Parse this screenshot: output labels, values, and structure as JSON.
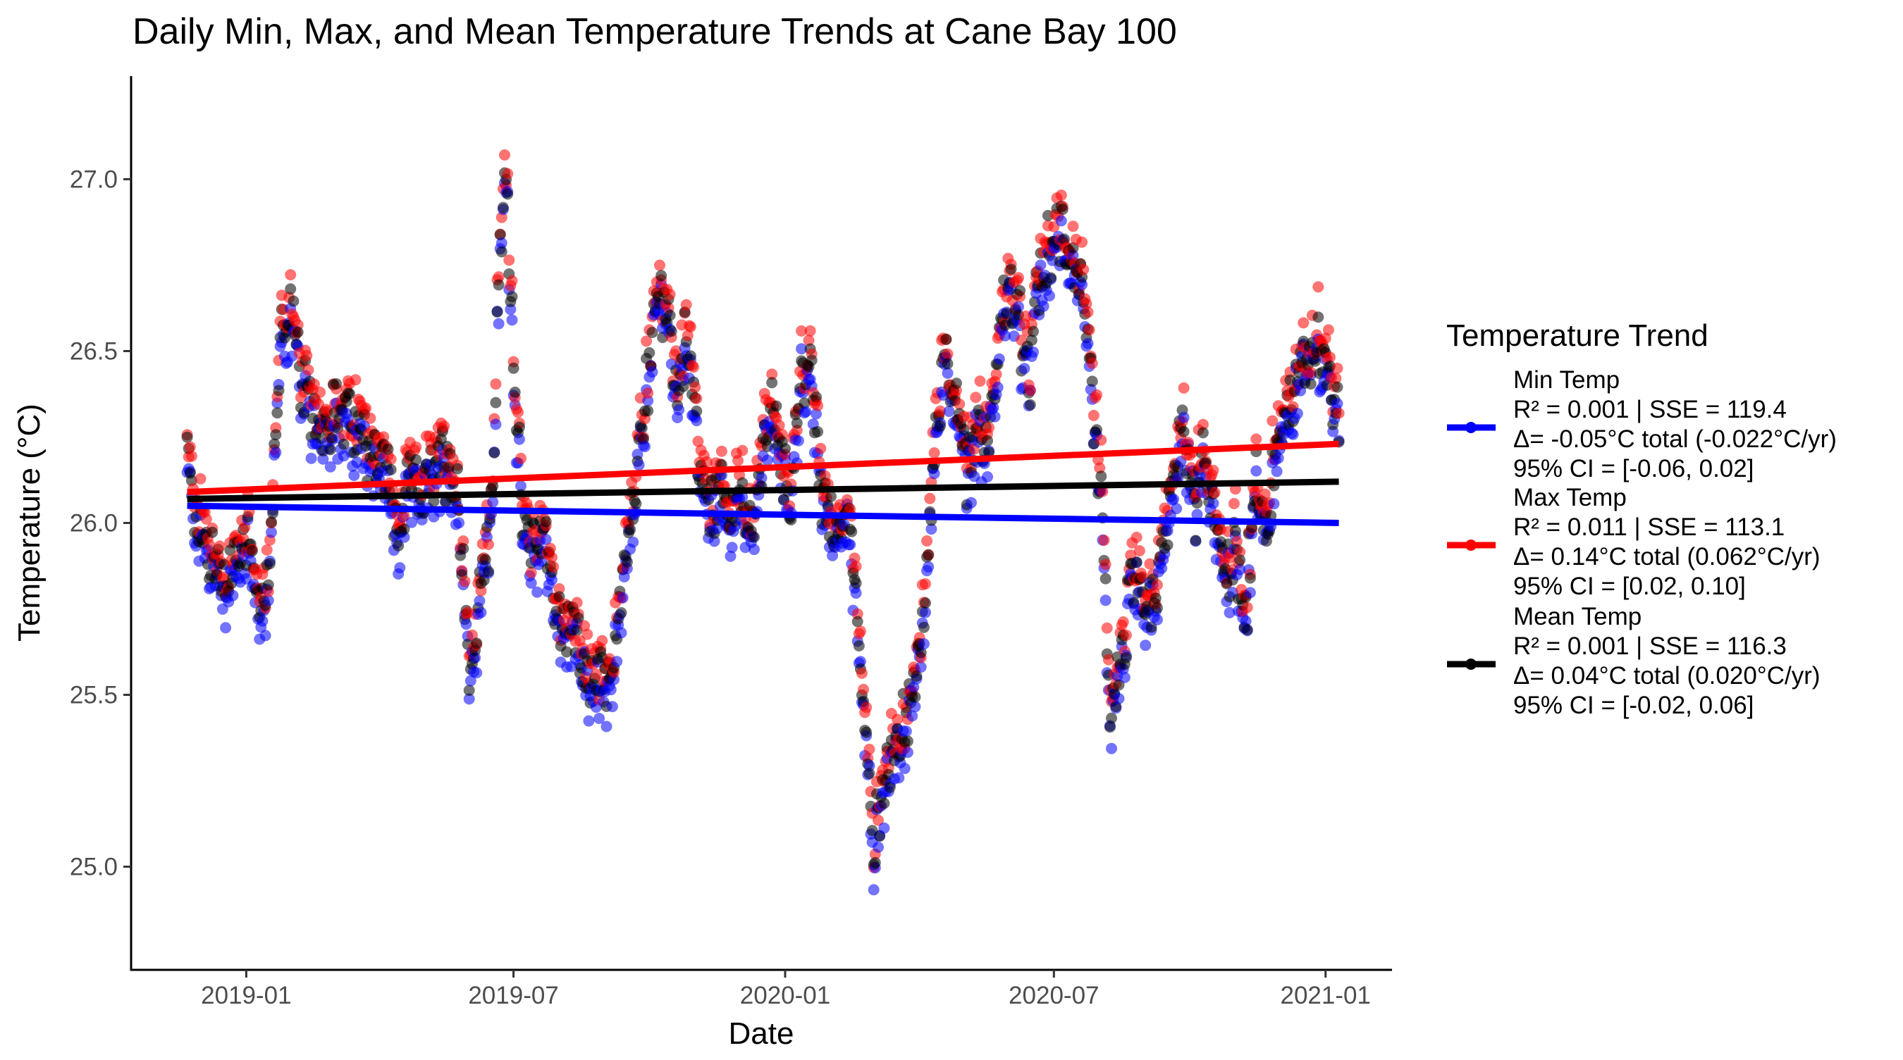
{
  "chart_data": {
    "type": "scatter",
    "title": "Daily Min, Max, and Mean Temperature Trends at Cane Bay 100",
    "xlabel": "Date",
    "ylabel": "Temperature (°C)",
    "xlim": [
      "2018-10-15",
      "2021-02-15"
    ],
    "ylim": [
      24.7,
      27.3
    ],
    "x_ticks": [
      {
        "date": "2019-01-01",
        "label": "2019-01"
      },
      {
        "date": "2019-07-01",
        "label": "2019-07"
      },
      {
        "date": "2020-01-01",
        "label": "2020-01"
      },
      {
        "date": "2020-07-01",
        "label": "2020-07"
      },
      {
        "date": "2021-01-01",
        "label": "2021-01"
      }
    ],
    "y_ticks": [
      25.0,
      25.5,
      26.0,
      26.5,
      27.0
    ],
    "y_tick_labels": [
      "25.0",
      "25.5",
      "26.0",
      "26.5",
      "27.0"
    ],
    "grid": false,
    "legend": {
      "title": "Temperature Trend",
      "placement": "right",
      "entries": [
        {
          "series": "Min Temp",
          "lines": [
            "Min Temp",
            "R² = 0.001 | SSE = 119.4",
            "Δ= -0.05°C total (-0.022°C/yr)",
            "95% CI = [-0.06, 0.02]"
          ]
        },
        {
          "series": "Max Temp",
          "lines": [
            "Max Temp",
            "R² = 0.011 | SSE = 113.1",
            "Δ= 0.14°C total (0.062°C/yr)",
            "95% CI = [0.02, 0.10]"
          ]
        },
        {
          "series": "Mean Temp",
          "lines": [
            "Mean Temp",
            "R² = 0.001 | SSE = 116.3",
            "Δ= 0.04°C total (0.020°C/yr)",
            "95% CI = [-0.02, 0.06]"
          ]
        }
      ]
    },
    "daily_mean_profile": [
      [
        "2018-11-22",
        26.18
      ],
      [
        "2018-11-28",
        26.02
      ],
      [
        "2018-12-05",
        25.95
      ],
      [
        "2018-12-12",
        25.85
      ],
      [
        "2018-12-19",
        25.82
      ],
      [
        "2018-12-26",
        25.9
      ],
      [
        "2019-01-03",
        26.0
      ],
      [
        "2019-01-10",
        25.72
      ],
      [
        "2019-01-17",
        25.85
      ],
      [
        "2019-01-24",
        26.55
      ],
      [
        "2019-01-31",
        26.62
      ],
      [
        "2019-02-07",
        26.4
      ],
      [
        "2019-02-14",
        26.32
      ],
      [
        "2019-02-28",
        26.3
      ],
      [
        "2019-03-14",
        26.28
      ],
      [
        "2019-03-28",
        26.22
      ],
      [
        "2019-04-07",
        26.12
      ],
      [
        "2019-04-14",
        25.95
      ],
      [
        "2019-04-21",
        26.1
      ],
      [
        "2019-05-05",
        26.12
      ],
      [
        "2019-05-19",
        26.2
      ],
      [
        "2019-05-26",
        26.0
      ],
      [
        "2019-06-02",
        25.55
      ],
      [
        "2019-06-09",
        25.85
      ],
      [
        "2019-06-16",
        26.0
      ],
      [
        "2019-06-21",
        26.7
      ],
      [
        "2019-06-26",
        27.05
      ],
      [
        "2019-07-01",
        26.5
      ],
      [
        "2019-07-07",
        26.0
      ],
      [
        "2019-07-14",
        25.9
      ],
      [
        "2019-07-21",
        26.0
      ],
      [
        "2019-07-28",
        25.8
      ],
      [
        "2019-08-04",
        25.65
      ],
      [
        "2019-08-11",
        25.75
      ],
      [
        "2019-08-18",
        25.55
      ],
      [
        "2019-08-25",
        25.55
      ],
      [
        "2019-09-01",
        25.5
      ],
      [
        "2019-09-08",
        25.65
      ],
      [
        "2019-09-15",
        25.9
      ],
      [
        "2019-09-22",
        26.1
      ],
      [
        "2019-09-29",
        26.4
      ],
      [
        "2019-10-06",
        26.7
      ],
      [
        "2019-10-13",
        26.55
      ],
      [
        "2019-10-20",
        26.4
      ],
      [
        "2019-10-27",
        26.55
      ],
      [
        "2019-11-03",
        26.2
      ],
      [
        "2019-11-10",
        26.0
      ],
      [
        "2019-11-17",
        26.1
      ],
      [
        "2019-11-24",
        26.0
      ],
      [
        "2019-12-01",
        26.1
      ],
      [
        "2019-12-08",
        25.95
      ],
      [
        "2019-12-15",
        26.2
      ],
      [
        "2019-12-22",
        26.35
      ],
      [
        "2019-12-29",
        26.15
      ],
      [
        "2020-01-05",
        26.1
      ],
      [
        "2020-01-12",
        26.45
      ],
      [
        "2020-01-19",
        26.4
      ],
      [
        "2020-01-26",
        26.1
      ],
      [
        "2020-02-02",
        25.95
      ],
      [
        "2020-02-09",
        26.05
      ],
      [
        "2020-02-16",
        25.9
      ],
      [
        "2020-02-23",
        25.5
      ],
      [
        "2020-03-01",
        25.05
      ],
      [
        "2020-03-08",
        25.25
      ],
      [
        "2020-03-15",
        25.35
      ],
      [
        "2020-03-22",
        25.4
      ],
      [
        "2020-03-29",
        25.5
      ],
      [
        "2020-04-05",
        25.8
      ],
      [
        "2020-04-12",
        26.3
      ],
      [
        "2020-04-19",
        26.45
      ],
      [
        "2020-04-26",
        26.35
      ],
      [
        "2020-05-03",
        26.15
      ],
      [
        "2020-05-10",
        26.3
      ],
      [
        "2020-05-17",
        26.25
      ],
      [
        "2020-05-24",
        26.45
      ],
      [
        "2020-05-31",
        26.7
      ],
      [
        "2020-06-07",
        26.6
      ],
      [
        "2020-06-14",
        26.4
      ],
      [
        "2020-06-21",
        26.7
      ],
      [
        "2020-06-28",
        26.8
      ],
      [
        "2020-07-05",
        26.85
      ],
      [
        "2020-07-12",
        26.8
      ],
      [
        "2020-07-19",
        26.7
      ],
      [
        "2020-07-26",
        26.4
      ],
      [
        "2020-08-02",
        26.1
      ],
      [
        "2020-08-09",
        25.4
      ],
      [
        "2020-08-16",
        25.6
      ],
      [
        "2020-08-23",
        25.85
      ],
      [
        "2020-08-30",
        25.8
      ],
      [
        "2020-09-06",
        25.75
      ],
      [
        "2020-09-13",
        25.9
      ],
      [
        "2020-09-20",
        26.15
      ],
      [
        "2020-09-27",
        26.25
      ],
      [
        "2020-10-04",
        26.05
      ],
      [
        "2020-10-11",
        26.2
      ],
      [
        "2020-10-18",
        26.0
      ],
      [
        "2020-10-25",
        25.85
      ],
      [
        "2020-11-01",
        25.95
      ],
      [
        "2020-11-08",
        25.75
      ],
      [
        "2020-11-15",
        26.1
      ],
      [
        "2020-11-22",
        26.0
      ],
      [
        "2020-11-29",
        26.25
      ],
      [
        "2020-12-06",
        26.3
      ],
      [
        "2020-12-13",
        26.4
      ],
      [
        "2020-12-20",
        26.5
      ],
      [
        "2020-12-27",
        26.55
      ],
      [
        "2021-01-03",
        26.45
      ],
      [
        "2021-01-10",
        26.3
      ]
    ],
    "series": [
      {
        "name": "Min Temp",
        "color": "#0000FF",
        "offset": -0.04,
        "trend": {
          "x": [
            "2018-11-22",
            "2021-01-10"
          ],
          "y": [
            26.05,
            26.0
          ]
        }
      },
      {
        "name": "Max Temp",
        "color": "#FF0000",
        "offset": 0.04,
        "trend": {
          "x": [
            "2018-11-22",
            "2021-01-10"
          ],
          "y": [
            26.09,
            26.23
          ]
        }
      },
      {
        "name": "Mean Temp",
        "color": "#000000",
        "offset": 0.0,
        "trend": {
          "x": [
            "2018-11-22",
            "2021-01-10"
          ],
          "y": [
            26.07,
            26.12
          ]
        }
      }
    ]
  }
}
